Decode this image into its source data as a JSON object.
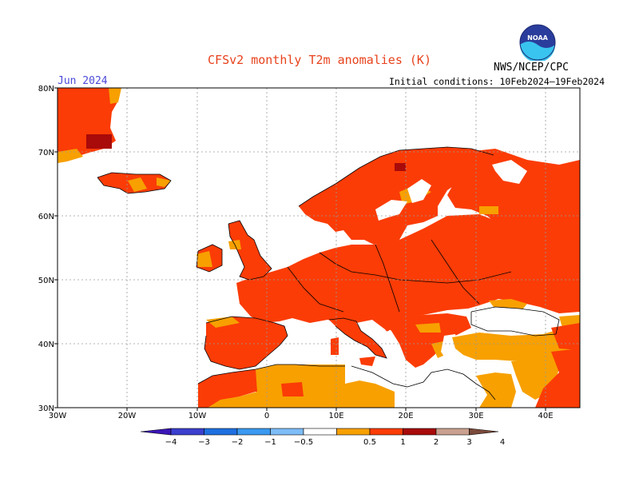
{
  "header": {
    "title": "CFSv2 monthly T2m anomalies (K)",
    "period": "Jun 2024",
    "initial_conditions": "Initial conditions: 10Feb2024–19Feb2024",
    "agency": "NWS/NCEP/CPC",
    "logo_text": "NOAA"
  },
  "map": {
    "lat_labels": [
      "80N",
      "70N",
      "60N",
      "50N",
      "40N",
      "30N"
    ],
    "lon_labels": [
      "30W",
      "20W",
      "10W",
      "0",
      "10E",
      "20E",
      "30E",
      "40E"
    ],
    "lon_range": [
      -30,
      45
    ],
    "lat_range": [
      30,
      80
    ]
  },
  "colorbar": {
    "labels": [
      "−4",
      "−3",
      "−2",
      "−1",
      "−0.5",
      "0.5",
      "1",
      "2",
      "3",
      "4"
    ],
    "colors": [
      "#3b16b8",
      "#3a3fcf",
      "#1e6fe0",
      "#3a99f0",
      "#7dbdf7",
      "#ffffff",
      "#f7a000",
      "#fb3c06",
      "#a90a0a",
      "#caa08f",
      "#7a4a3a"
    ],
    "category_labels": {
      "above_0_5": "0.5 to 1",
      "above_1": "1 to 2",
      "above_2": "2 to 3"
    }
  },
  "colors": {
    "land_warm": "#fb3c06",
    "land_mild": "#f7a000",
    "land_hot": "#a90a0a",
    "ocean": "#ffffff",
    "title": "#e8421c",
    "period": "#4a4ad8"
  }
}
